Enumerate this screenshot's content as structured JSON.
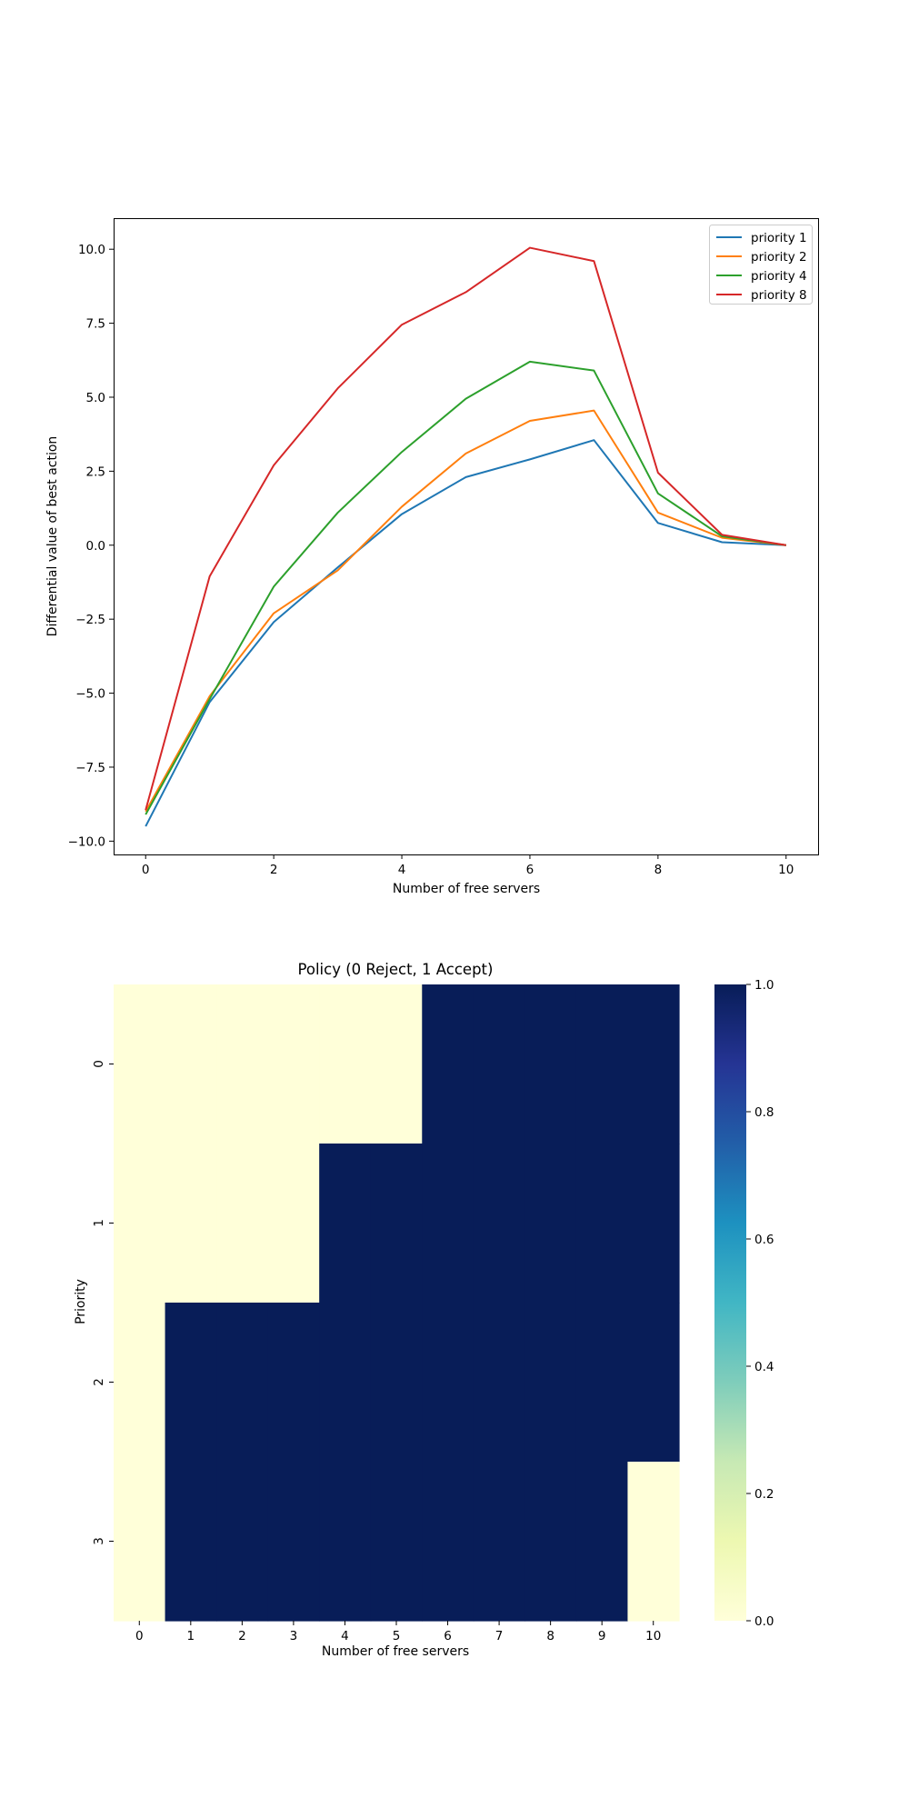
{
  "chart_data": [
    {
      "type": "line",
      "title": "",
      "xlabel": "Number of free servers",
      "ylabel": "Differential value of best action",
      "x": [
        0,
        1,
        2,
        3,
        4,
        5,
        6,
        7,
        8,
        9,
        10
      ],
      "xlim": [
        -0.5,
        10.5
      ],
      "ylim": [
        -10.45,
        11.05
      ],
      "xticks": [
        0,
        2,
        4,
        6,
        8,
        10
      ],
      "xtick_labels": [
        "0",
        "2",
        "4",
        "6",
        "8",
        "10"
      ],
      "yticks": [
        -10,
        -7.5,
        -5,
        -2.5,
        0,
        2.5,
        5,
        7.5,
        10
      ],
      "ytick_labels": [
        "−10.0",
        "−7.5",
        "−5.0",
        "−2.5",
        "0.0",
        "2.5",
        "5.0",
        "7.5",
        "10.0"
      ],
      "grid": false,
      "legend_position": "top-right",
      "series": [
        {
          "name": "priority 1",
          "color": "#1f77b4",
          "values": [
            -9.5,
            -5.3,
            -2.6,
            -0.75,
            1.05,
            2.3,
            2.9,
            3.55,
            0.75,
            0.1,
            0.0
          ]
        },
        {
          "name": "priority 2",
          "color": "#ff7f0e",
          "values": [
            -9.0,
            -5.1,
            -2.3,
            -0.85,
            1.3,
            3.1,
            4.2,
            4.55,
            1.1,
            0.25,
            0.0
          ]
        },
        {
          "name": "priority 4",
          "color": "#2ca02c",
          "values": [
            -9.1,
            -5.2,
            -1.4,
            1.1,
            3.15,
            4.95,
            6.2,
            5.9,
            1.75,
            0.3,
            0.0
          ]
        },
        {
          "name": "priority 8",
          "color": "#d62728",
          "values": [
            -8.95,
            -1.05,
            2.7,
            5.3,
            7.45,
            8.55,
            10.05,
            9.6,
            2.45,
            0.35,
            0.0
          ]
        }
      ]
    },
    {
      "type": "heatmap",
      "title": "Policy (0 Reject, 1 Accept)",
      "xlabel": "Number of free servers",
      "ylabel": "Priority",
      "x_categories": [
        "0",
        "1",
        "2",
        "3",
        "4",
        "5",
        "6",
        "7",
        "8",
        "9",
        "10"
      ],
      "y_categories": [
        "0",
        "1",
        "2",
        "3"
      ],
      "values": [
        [
          0,
          0,
          0,
          0,
          0,
          0,
          1,
          1,
          1,
          1,
          1
        ],
        [
          0,
          0,
          0,
          0,
          1,
          1,
          1,
          1,
          1,
          1,
          1
        ],
        [
          0,
          1,
          1,
          1,
          1,
          1,
          1,
          1,
          1,
          1,
          1
        ],
        [
          0,
          1,
          1,
          1,
          1,
          1,
          1,
          1,
          1,
          1,
          0
        ]
      ],
      "colormap": "YlGnBu",
      "colormap_stops": [
        "#ffffd9",
        "#edf8b1",
        "#c7e9b4",
        "#7fcdbb",
        "#41b6c4",
        "#1d91c0",
        "#225ea8",
        "#253494",
        "#081d58"
      ],
      "colorbar_range": [
        0.0,
        1.0
      ],
      "colorbar_ticks": [
        0.0,
        0.2,
        0.4,
        0.6,
        0.8,
        1.0
      ],
      "colorbar_tick_labels": [
        "0.0",
        "0.2",
        "0.4",
        "0.6",
        "0.8",
        "1.0"
      ]
    }
  ]
}
